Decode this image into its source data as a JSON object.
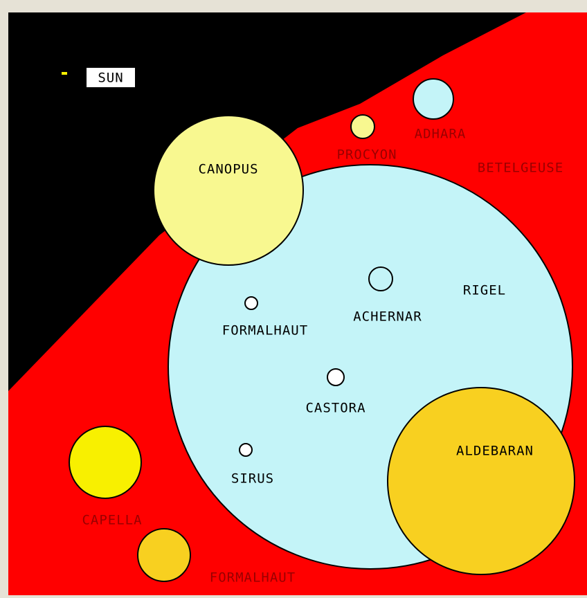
{
  "labels": {
    "sun": "SUN",
    "canopus": "CANOPUS",
    "procyon": "PROCYON",
    "adhara": "ADHARA",
    "betelgeuse": "BETELGEUSE",
    "rigel": "RIGEL",
    "achernar": "ACHERNAR",
    "fomalhaut_inner": "FORMALHAUT",
    "castora": "CASTORA",
    "sirus": "SIRUS",
    "aldebaran": "ALDEBARAN",
    "capella": "CAPELLA",
    "fomalhaut_outer": "FORMALHAUT"
  }
}
